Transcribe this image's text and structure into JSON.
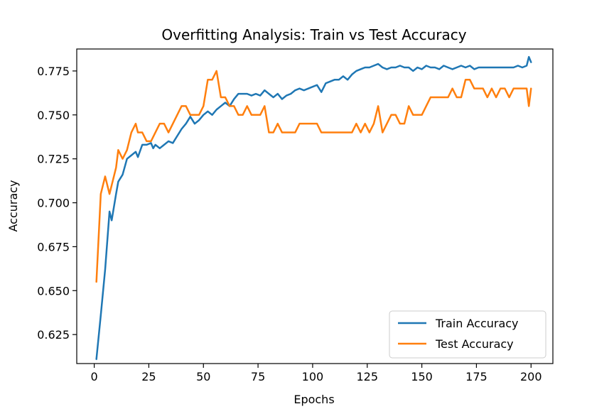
{
  "chart_data": {
    "type": "line",
    "title": "Overfitting Analysis: Train vs Test Accuracy",
    "xlabel": "Epochs",
    "ylabel": "Accuracy",
    "xlim": [
      -8,
      210
    ],
    "ylim": [
      0.6085,
      0.7875
    ],
    "xticks": [
      0,
      25,
      50,
      75,
      100,
      125,
      150,
      175,
      200
    ],
    "yticks": [
      0.625,
      0.65,
      0.675,
      0.7,
      0.725,
      0.75,
      0.775
    ],
    "ytick_labels": [
      "0.625",
      "0.650",
      "0.675",
      "0.700",
      "0.725",
      "0.750",
      "0.775"
    ],
    "grid": false,
    "legend_position": "lower-right",
    "series": [
      {
        "name": "Train Accuracy",
        "color": "#1f77b4",
        "x": [
          1,
          3,
          5,
          7,
          8,
          10,
          11,
          13,
          15,
          17,
          19,
          20,
          22,
          24,
          26,
          27,
          28,
          30,
          32,
          34,
          36,
          38,
          40,
          42,
          44,
          46,
          48,
          50,
          52,
          54,
          56,
          58,
          60,
          62,
          64,
          66,
          68,
          70,
          72,
          74,
          76,
          78,
          80,
          82,
          84,
          86,
          88,
          90,
          92,
          94,
          96,
          98,
          100,
          102,
          104,
          106,
          108,
          110,
          112,
          114,
          116,
          118,
          120,
          122,
          124,
          126,
          128,
          130,
          132,
          134,
          136,
          138,
          140,
          142,
          144,
          146,
          148,
          150,
          152,
          154,
          156,
          158,
          160,
          162,
          164,
          166,
          168,
          170,
          172,
          174,
          176,
          178,
          180,
          182,
          184,
          186,
          188,
          190,
          192,
          194,
          196,
          198,
          199,
          200
        ],
        "y": [
          0.611,
          0.636,
          0.662,
          0.695,
          0.69,
          0.705,
          0.712,
          0.716,
          0.725,
          0.727,
          0.729,
          0.726,
          0.733,
          0.733,
          0.734,
          0.731,
          0.733,
          0.731,
          0.733,
          0.735,
          0.734,
          0.738,
          0.742,
          0.745,
          0.749,
          0.745,
          0.747,
          0.75,
          0.752,
          0.75,
          0.753,
          0.755,
          0.757,
          0.755,
          0.759,
          0.762,
          0.762,
          0.762,
          0.761,
          0.762,
          0.761,
          0.764,
          0.762,
          0.76,
          0.762,
          0.759,
          0.761,
          0.762,
          0.764,
          0.765,
          0.764,
          0.765,
          0.766,
          0.767,
          0.763,
          0.768,
          0.769,
          0.77,
          0.77,
          0.772,
          0.77,
          0.773,
          0.775,
          0.776,
          0.777,
          0.777,
          0.778,
          0.779,
          0.777,
          0.776,
          0.777,
          0.777,
          0.778,
          0.777,
          0.777,
          0.775,
          0.777,
          0.776,
          0.778,
          0.777,
          0.777,
          0.776,
          0.778,
          0.777,
          0.776,
          0.777,
          0.778,
          0.777,
          0.778,
          0.776,
          0.777,
          0.777,
          0.777,
          0.777,
          0.777,
          0.777,
          0.777,
          0.777,
          0.777,
          0.778,
          0.777,
          0.778,
          0.783,
          0.78
        ]
      },
      {
        "name": "Test Accuracy",
        "color": "#ff7f0e",
        "x": [
          1,
          3,
          5,
          7,
          8,
          10,
          11,
          13,
          15,
          17,
          19,
          20,
          22,
          24,
          26,
          28,
          30,
          32,
          34,
          36,
          38,
          40,
          42,
          44,
          46,
          48,
          50,
          52,
          54,
          56,
          58,
          60,
          62,
          64,
          66,
          68,
          70,
          72,
          74,
          76,
          78,
          80,
          82,
          84,
          86,
          88,
          90,
          92,
          94,
          96,
          98,
          100,
          102,
          104,
          106,
          108,
          110,
          112,
          114,
          116,
          118,
          120,
          122,
          124,
          126,
          128,
          130,
          132,
          134,
          136,
          138,
          140,
          142,
          144,
          146,
          148,
          150,
          152,
          154,
          156,
          158,
          160,
          162,
          164,
          166,
          168,
          170,
          172,
          174,
          176,
          178,
          180,
          182,
          184,
          186,
          188,
          190,
          192,
          194,
          196,
          198,
          199,
          200
        ],
        "y": [
          0.655,
          0.705,
          0.715,
          0.705,
          0.71,
          0.72,
          0.73,
          0.725,
          0.73,
          0.74,
          0.745,
          0.74,
          0.74,
          0.735,
          0.735,
          0.74,
          0.745,
          0.745,
          0.74,
          0.745,
          0.75,
          0.755,
          0.755,
          0.75,
          0.75,
          0.75,
          0.755,
          0.77,
          0.77,
          0.775,
          0.76,
          0.76,
          0.755,
          0.755,
          0.75,
          0.75,
          0.755,
          0.75,
          0.75,
          0.75,
          0.755,
          0.74,
          0.74,
          0.745,
          0.74,
          0.74,
          0.74,
          0.74,
          0.745,
          0.745,
          0.745,
          0.745,
          0.745,
          0.74,
          0.74,
          0.74,
          0.74,
          0.74,
          0.74,
          0.74,
          0.74,
          0.745,
          0.74,
          0.745,
          0.74,
          0.745,
          0.755,
          0.74,
          0.745,
          0.75,
          0.75,
          0.745,
          0.745,
          0.755,
          0.75,
          0.75,
          0.75,
          0.755,
          0.76,
          0.76,
          0.76,
          0.76,
          0.76,
          0.765,
          0.76,
          0.76,
          0.77,
          0.77,
          0.765,
          0.765,
          0.765,
          0.76,
          0.765,
          0.76,
          0.765,
          0.765,
          0.76,
          0.765,
          0.765,
          0.765,
          0.765,
          0.755,
          0.765
        ]
      }
    ]
  }
}
